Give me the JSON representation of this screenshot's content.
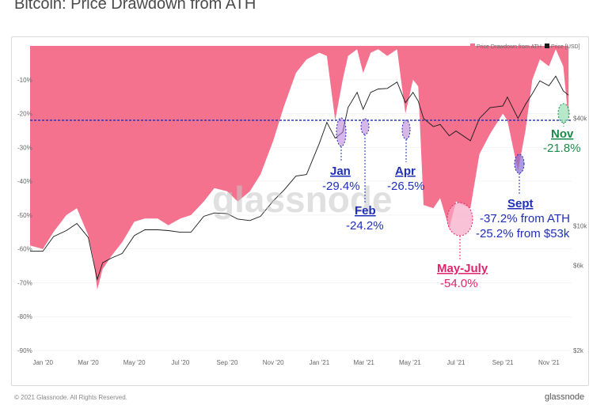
{
  "title": "Bitcoin: Price Drawdown from ATH",
  "watermark": "glassnode",
  "footer_left": "© 2021 Glassnode. All Rights Reserved.",
  "footer_right": "glassnode",
  "colors": {
    "drawdown": "#f4728e",
    "price": "#1a1a1a",
    "threshold": "#1f2fb8"
  },
  "chart_data": {
    "type": "area",
    "series": [
      {
        "name": "Price Drawdown from ATH",
        "axis": "left"
      },
      {
        "name": "Price [USD]",
        "axis": "right"
      }
    ],
    "x_tick_labels": [
      "Jan '20",
      "Mar '20",
      "May '20",
      "Jul '20",
      "Sep '20",
      "Nov '20",
      "Jan '21",
      "Mar '21",
      "May '21",
      "Jul '21",
      "Sep '21",
      "Nov '21"
    ],
    "y_left_tick_labels": [
      "-10%",
      "-20%",
      "-30%",
      "-40%",
      "-50%",
      "-60%",
      "-70%",
      "-80%",
      "-90%"
    ],
    "y_right_tick_labels": [
      "$40k",
      "$10k",
      "$6k",
      "$2k"
    ],
    "ylim_left": [
      -90,
      0
    ],
    "reference_line": -22,
    "drawdown": {
      "x": [
        "2019-12-15",
        "2020-01-01",
        "2020-01-15",
        "2020-02-01",
        "2020-02-15",
        "2020-03-01",
        "2020-03-08",
        "2020-03-13",
        "2020-03-20",
        "2020-04-01",
        "2020-04-15",
        "2020-05-01",
        "2020-05-15",
        "2020-06-01",
        "2020-06-15",
        "2020-07-01",
        "2020-07-15",
        "2020-08-01",
        "2020-08-15",
        "2020-09-01",
        "2020-09-15",
        "2020-10-01",
        "2020-10-15",
        "2020-11-01",
        "2020-11-15",
        "2020-12-01",
        "2020-12-15",
        "2021-01-01",
        "2021-01-11",
        "2021-01-22",
        "2021-02-01",
        "2021-02-08",
        "2021-02-20",
        "2021-02-28",
        "2021-03-10",
        "2021-03-20",
        "2021-04-01",
        "2021-04-14",
        "2021-04-25",
        "2021-05-05",
        "2021-05-12",
        "2021-05-19",
        "2021-06-01",
        "2021-06-10",
        "2021-06-22",
        "2021-07-01",
        "2021-07-20",
        "2021-08-01",
        "2021-08-15",
        "2021-09-01",
        "2021-09-07",
        "2021-09-21",
        "2021-10-01",
        "2021-10-10",
        "2021-10-20",
        "2021-11-01",
        "2021-11-10",
        "2021-11-20",
        "2021-11-27"
      ],
      "y": [
        -59,
        -60,
        -55,
        -50,
        -48,
        -56,
        -63,
        -72,
        -66,
        -62,
        -58,
        -52,
        -51,
        -51,
        -53,
        -51,
        -50,
        -46,
        -42,
        -43,
        -46,
        -43,
        -38,
        -28,
        -18,
        -8,
        -4,
        -2,
        -3,
        -22,
        -10,
        -3,
        -1,
        -8,
        -2,
        -1,
        -3,
        -1,
        -20,
        -10,
        -12,
        -47,
        -48,
        -45,
        -54,
        -46,
        -48,
        -32,
        -26,
        -20,
        -22,
        -37,
        -25,
        -10,
        -4,
        -6,
        -1,
        -6,
        -22
      ]
    },
    "price": {
      "x": [
        "2019-12-15",
        "2020-01-01",
        "2020-01-15",
        "2020-02-01",
        "2020-02-15",
        "2020-03-01",
        "2020-03-13",
        "2020-03-20",
        "2020-04-01",
        "2020-04-15",
        "2020-05-01",
        "2020-05-15",
        "2020-06-01",
        "2020-06-15",
        "2020-07-01",
        "2020-07-15",
        "2020-08-01",
        "2020-08-15",
        "2020-09-01",
        "2020-09-15",
        "2020-10-01",
        "2020-10-15",
        "2020-11-01",
        "2020-11-15",
        "2020-12-01",
        "2020-12-15",
        "2021-01-01",
        "2021-01-11",
        "2021-01-22",
        "2021-02-01",
        "2021-02-08",
        "2021-02-20",
        "2021-02-28",
        "2021-03-10",
        "2021-03-20",
        "2021-04-01",
        "2021-04-14",
        "2021-04-25",
        "2021-05-05",
        "2021-05-12",
        "2021-05-19",
        "2021-06-01",
        "2021-06-10",
        "2021-06-22",
        "2021-07-01",
        "2021-07-20",
        "2021-08-01",
        "2021-08-15",
        "2021-09-01",
        "2021-09-07",
        "2021-09-21",
        "2021-10-01",
        "2021-10-10",
        "2021-10-20",
        "2021-11-01",
        "2021-11-10",
        "2021-11-20",
        "2021-11-27"
      ],
      "y": [
        7200,
        7200,
        8700,
        9400,
        10300,
        8600,
        5000,
        6200,
        6600,
        7000,
        8800,
        9500,
        9500,
        9400,
        9200,
        9200,
        11300,
        11800,
        11700,
        10900,
        10700,
        11300,
        13800,
        15800,
        19000,
        19400,
        29000,
        38000,
        31000,
        33500,
        46000,
        56000,
        45000,
        56000,
        58500,
        58900,
        64000,
        49000,
        56000,
        50000,
        40000,
        36000,
        37000,
        32000,
        34000,
        30000,
        40000,
        46000,
        47000,
        52700,
        40000,
        48000,
        55000,
        65000,
        61000,
        69000,
        57000,
        54000
      ]
    }
  },
  "annotations": [
    {
      "label": "Jan",
      "value": "-29.4%",
      "color": "blue"
    },
    {
      "label": "Feb",
      "value": "-24.2%",
      "color": "blue"
    },
    {
      "label": "Apr",
      "value": "-26.5%",
      "color": "blue"
    },
    {
      "label": "May-July",
      "value": "-54.0%",
      "color": "pink"
    },
    {
      "label": "Sept",
      "value": "-37.2% from ATH",
      "value2": "-25.2% from $53k",
      "color": "blue"
    },
    {
      "label": "Nov",
      "value": "-21.8%",
      "color": "green"
    }
  ]
}
